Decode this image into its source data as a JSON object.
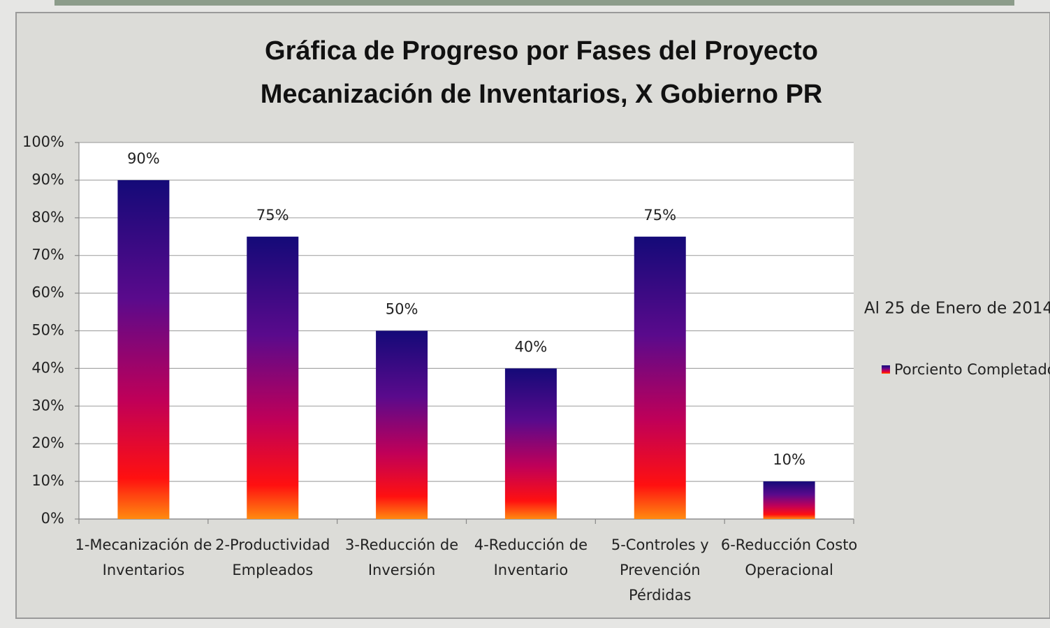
{
  "chart_data": {
    "type": "bar",
    "title": [
      "Gráfica de Progreso por Fases del Proyecto",
      "Mecanización de Inventarios, X Gobierno PR"
    ],
    "annotation": "Al 25 de Enero de 2014",
    "categories": [
      [
        "1-Mecanización de",
        "Inventarios"
      ],
      [
        "2-Productividad",
        "Empleados"
      ],
      [
        "3-Reducción de",
        "Inversión"
      ],
      [
        "4-Reducción de",
        "Inventario"
      ],
      [
        "5-Controles y",
        "Prevención",
        "Pérdidas"
      ],
      [
        "6-Reducción Costo",
        "Operacional"
      ]
    ],
    "series": [
      {
        "name": "Porciento Completado",
        "values": [
          90,
          75,
          50,
          40,
          75,
          10
        ],
        "value_labels": [
          "90%",
          "75%",
          "50%",
          "40%",
          "75%",
          "10%"
        ]
      }
    ],
    "ylim": [
      0,
      100
    ],
    "yticks": [
      {
        "value": 0,
        "label": "0%"
      },
      {
        "value": 10,
        "label": "10%"
      },
      {
        "value": 20,
        "label": "20%"
      },
      {
        "value": 30,
        "label": "30%"
      },
      {
        "value": 40,
        "label": "40%"
      },
      {
        "value": 50,
        "label": "50%"
      },
      {
        "value": 60,
        "label": "60%"
      },
      {
        "value": 70,
        "label": "70%"
      },
      {
        "value": 80,
        "label": "80%"
      },
      {
        "value": 90,
        "label": "90%"
      },
      {
        "value": 100,
        "label": "100%"
      }
    ],
    "grid": true,
    "legend": "right"
  }
}
